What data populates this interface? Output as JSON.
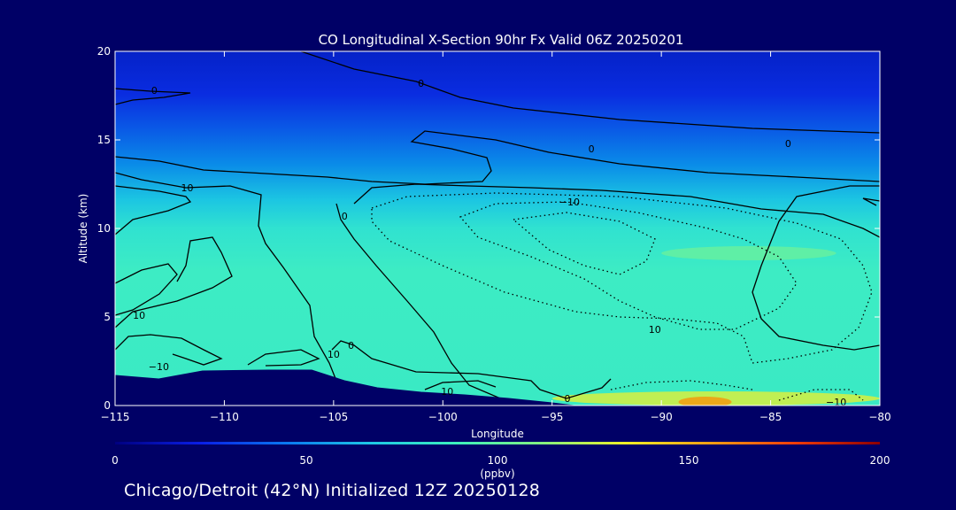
{
  "chart_data": {
    "type": "heatmap",
    "title": "CO Longitudinal X-Section 90hr  Fx Valid 06Z 20250201",
    "xlabel": "Longitude",
    "ylabel": "Altitude (km)",
    "xlim": [
      -115,
      -80
    ],
    "ylim": [
      0,
      20
    ],
    "xticks": [
      -115,
      -110,
      -105,
      -100,
      -95,
      -90,
      -85,
      -80
    ],
    "xtick_labels": [
      "−115",
      "−110",
      "−105",
      "−100",
      "−95",
      "−90",
      "−85",
      "−80"
    ],
    "yticks": [
      0,
      5,
      10,
      15,
      20
    ],
    "ytick_labels": [
      "0",
      "5",
      "10",
      "15",
      "20"
    ],
    "colorbar": {
      "range": [
        0,
        200
      ],
      "ticks": [
        0,
        50,
        100,
        150,
        200
      ],
      "tick_labels": [
        "0",
        "50",
        "100",
        "150",
        "200"
      ],
      "unit": "(ppbv)",
      "colors": [
        "#000080",
        "#0a1ee6",
        "#0a78f0",
        "#1ec8e6",
        "#3cf0be",
        "#82f082",
        "#f0f028",
        "#f0a014",
        "#f03c0a",
        "#8c0000"
      ]
    },
    "filled_regions": [
      {
        "name": "stratosphere-top",
        "value": 25,
        "color": "#0a2ad8",
        "alt_range": [
          16,
          20
        ]
      },
      {
        "name": "upper-troposphere",
        "value": 55,
        "color": "#0a8ce8",
        "alt_range": [
          12,
          15
        ]
      },
      {
        "name": "mid-troposphere",
        "value": 85,
        "color": "#3cecc6",
        "alt_range": [
          2,
          11
        ]
      },
      {
        "name": "plume-east",
        "value": 95,
        "color": "#66f0a0",
        "lon_range": [
          -90,
          -82
        ],
        "alt_range": [
          8.2,
          9.0
        ]
      },
      {
        "name": "boundary-layer",
        "value": 120,
        "color": "#d8f040",
        "lon_range": [
          -95,
          -80
        ],
        "alt_range": [
          0,
          0.8
        ]
      },
      {
        "name": "surface-max",
        "value": 150,
        "color": "#f0a014",
        "lon": -88,
        "alt": 0.2
      }
    ],
    "contour_labels": [
      {
        "text": "0",
        "lon": -113.2,
        "alt": 17.8
      },
      {
        "text": "0",
        "lon": -101.0,
        "alt": 18.2
      },
      {
        "text": "0",
        "lon": -93.2,
        "alt": 14.5
      },
      {
        "text": "0",
        "lon": -84.2,
        "alt": 14.8
      },
      {
        "text": "10",
        "lon": -111.7,
        "alt": 12.3
      },
      {
        "text": "−10",
        "lon": -94.2,
        "alt": 11.5
      },
      {
        "text": "0",
        "lon": -104.5,
        "alt": 10.7
      },
      {
        "text": "10",
        "lon": -113.9,
        "alt": 5.1
      },
      {
        "text": "10",
        "lon": -90.3,
        "alt": 4.3
      },
      {
        "text": "0",
        "lon": -104.2,
        "alt": 3.4
      },
      {
        "text": "10",
        "lon": -105.0,
        "alt": 2.9
      },
      {
        "text": "−10",
        "lon": -113.0,
        "alt": 2.2
      },
      {
        "text": "10",
        "lon": -99.8,
        "alt": 0.8
      },
      {
        "text": "0",
        "lon": -94.3,
        "alt": 0.4
      },
      {
        "text": "−10",
        "lon": -82.0,
        "alt": 0.2
      }
    ],
    "terrain": [
      [
        -115,
        1.7
      ],
      [
        -114,
        1.6
      ],
      [
        -113,
        1.5
      ],
      [
        -111,
        1.95
      ],
      [
        -108,
        2.0
      ],
      [
        -106,
        2.0
      ],
      [
        -104.5,
        1.4
      ],
      [
        -103,
        1.0
      ],
      [
        -101,
        0.75
      ],
      [
        -99,
        0.6
      ],
      [
        -97,
        0.4
      ],
      [
        -95,
        0.15
      ],
      [
        -94,
        0.0
      ]
    ],
    "footer": "Chicago/Detroit (42°N) Initialized 12Z 20250128"
  }
}
